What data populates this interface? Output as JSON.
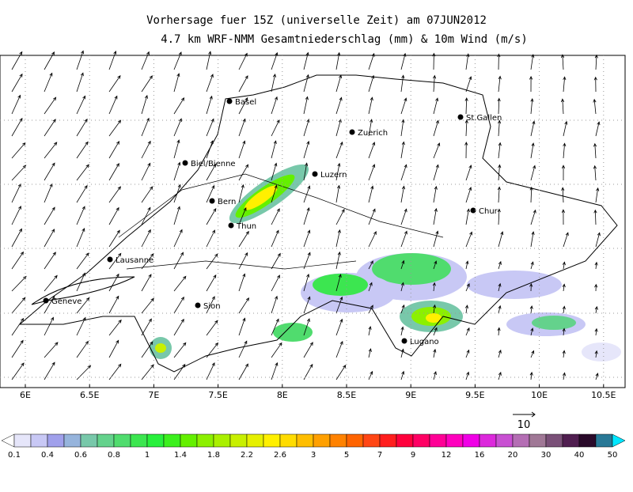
{
  "header": {
    "title": "Vorhersage fuer 15Z (universelle Zeit) am 07JUN2012",
    "subtitle": "4.7 km WRF-NMM Gesamtniederschlag (mm) & 10m Wind (m/s)"
  },
  "cities": [
    "Basel",
    "Zuerich",
    "St.Gallen",
    "Biel/Bienne",
    "Luzern",
    "Bern",
    "Thun",
    "Chur",
    "Lausanne",
    "Sion",
    "Geneve",
    "Lugano"
  ],
  "lon_labels": [
    "6E",
    "6.5E",
    "7E",
    "7.5E",
    "8E",
    "8.5E",
    "9E",
    "9.5E",
    "10E",
    "10.5E"
  ],
  "wind_scale": {
    "label": "10"
  },
  "colorbar": {
    "labels": [
      0.1,
      0.4,
      0.6,
      0.8,
      1,
      1.4,
      1.8,
      2.2,
      2.6,
      3,
      5,
      7,
      9,
      12,
      16,
      20,
      30,
      40,
      50
    ],
    "colors": [
      "#e6e6fa",
      "#c8c8f5",
      "#a0a0eb",
      "#96b4dc",
      "#78c8aa",
      "#64d28c",
      "#50dc6e",
      "#3ce650",
      "#28f03c",
      "#3cf01e",
      "#64f000",
      "#8cf000",
      "#aaf000",
      "#c8f000",
      "#e6f000",
      "#fff000",
      "#ffdc00",
      "#ffbe00",
      "#ffa000",
      "#ff8200",
      "#ff6400",
      "#ff4614",
      "#ff1e1e",
      "#ff003c",
      "#ff0064",
      "#ff0096",
      "#ff00be",
      "#f000e6",
      "#dc28dc",
      "#c850d2",
      "#b46eb4",
      "#a07896",
      "#7a5078",
      "#501e50",
      "#2a0a2a",
      "#287896"
    ],
    "under_color": "#ffffff",
    "over_color": "#00e6ff"
  }
}
